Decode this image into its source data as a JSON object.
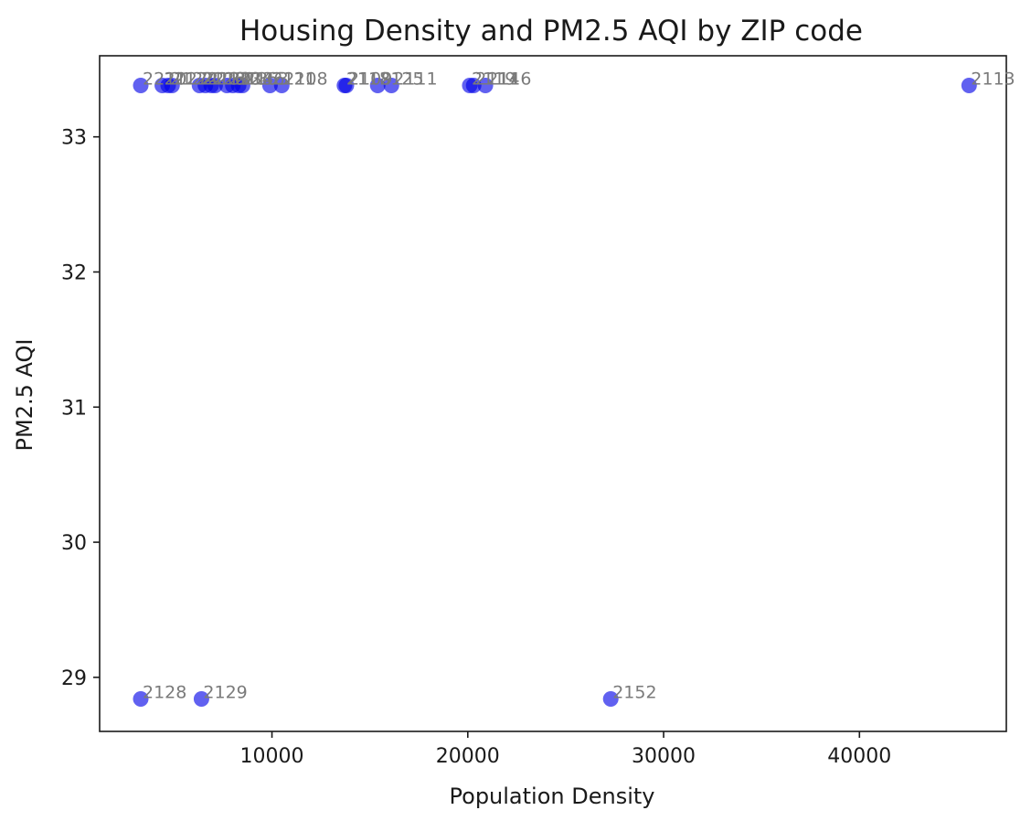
{
  "chart_data": {
    "type": "scatter",
    "title": "Housing Density and PM2.5 AQI by ZIP code",
    "xlabel": "Population Density",
    "ylabel": "PM2.5 AQI",
    "xlim": [
      1200,
      47500
    ],
    "ylim": [
      28.6,
      33.6
    ],
    "xticks": [
      10000,
      20000,
      30000,
      40000
    ],
    "yticks": [
      29,
      30,
      31,
      32,
      33
    ],
    "grid": false,
    "legend": "none",
    "marker_color": "#0000e6",
    "label_color": "#7a7a7a",
    "points": [
      {
        "x": 3300,
        "y": 33.38,
        "label": "2210"
      },
      {
        "x": 4400,
        "y": 33.38,
        "label": "2127"
      },
      {
        "x": 4700,
        "y": 33.38,
        "label": "2122"
      },
      {
        "x": 4900,
        "y": 33.38,
        "label": "2124"
      },
      {
        "x": 6300,
        "y": 33.38,
        "label": "2126"
      },
      {
        "x": 6600,
        "y": 33.38,
        "label": "2130"
      },
      {
        "x": 6900,
        "y": 33.38,
        "label": "2131"
      },
      {
        "x": 7100,
        "y": 33.38,
        "label": "2132"
      },
      {
        "x": 7700,
        "y": 33.38,
        "label": "2134"
      },
      {
        "x": 8000,
        "y": 33.38,
        "label": "2135"
      },
      {
        "x": 8300,
        "y": 33.38,
        "label": "2136"
      },
      {
        "x": 8500,
        "y": 33.38,
        "label": "2163"
      },
      {
        "x": 9900,
        "y": 33.38,
        "label": "2121"
      },
      {
        "x": 10500,
        "y": 33.38,
        "label": "2108"
      },
      {
        "x": 13700,
        "y": 33.38,
        "label": "2118"
      },
      {
        "x": 13800,
        "y": 33.38,
        "label": "2109"
      },
      {
        "x": 15400,
        "y": 33.38,
        "label": "2125"
      },
      {
        "x": 16100,
        "y": 33.38,
        "label": "2111"
      },
      {
        "x": 20100,
        "y": 33.38,
        "label": "2119"
      },
      {
        "x": 20300,
        "y": 33.38,
        "label": "2114"
      },
      {
        "x": 20900,
        "y": 33.38,
        "label": "2116"
      },
      {
        "x": 45600,
        "y": 33.38,
        "label": "2113"
      },
      {
        "x": 3300,
        "y": 28.84,
        "label": "2128"
      },
      {
        "x": 6400,
        "y": 28.84,
        "label": "2129"
      },
      {
        "x": 27300,
        "y": 28.84,
        "label": "2152"
      }
    ]
  }
}
